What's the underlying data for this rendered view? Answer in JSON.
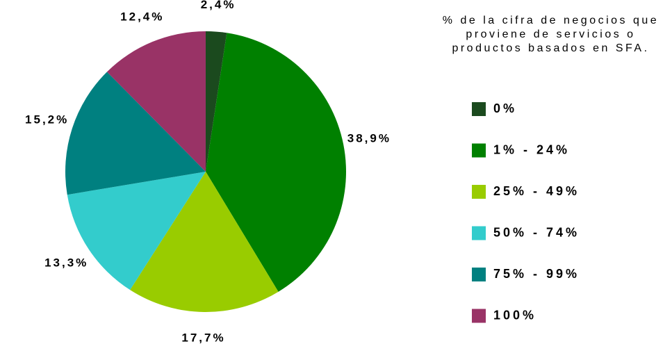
{
  "chart_data": {
    "type": "pie",
    "title": "% de la cifra de negocios que proviene de servicios o productos basados en SFA.",
    "categories": [
      "0%",
      "1% - 24%",
      "25% - 49%",
      "50% - 74%",
      "75% - 99%",
      "100%"
    ],
    "values": [
      2.4,
      38.9,
      17.7,
      13.3,
      15.2,
      12.4
    ],
    "value_labels": [
      "2,4%",
      "38,9%",
      "17,7%",
      "13,3%",
      "15,2%",
      "12,4%"
    ],
    "colors": [
      "#1b4a1e",
      "#008000",
      "#99cc00",
      "#33cccc",
      "#008080",
      "#993366"
    ],
    "legend": "right"
  }
}
